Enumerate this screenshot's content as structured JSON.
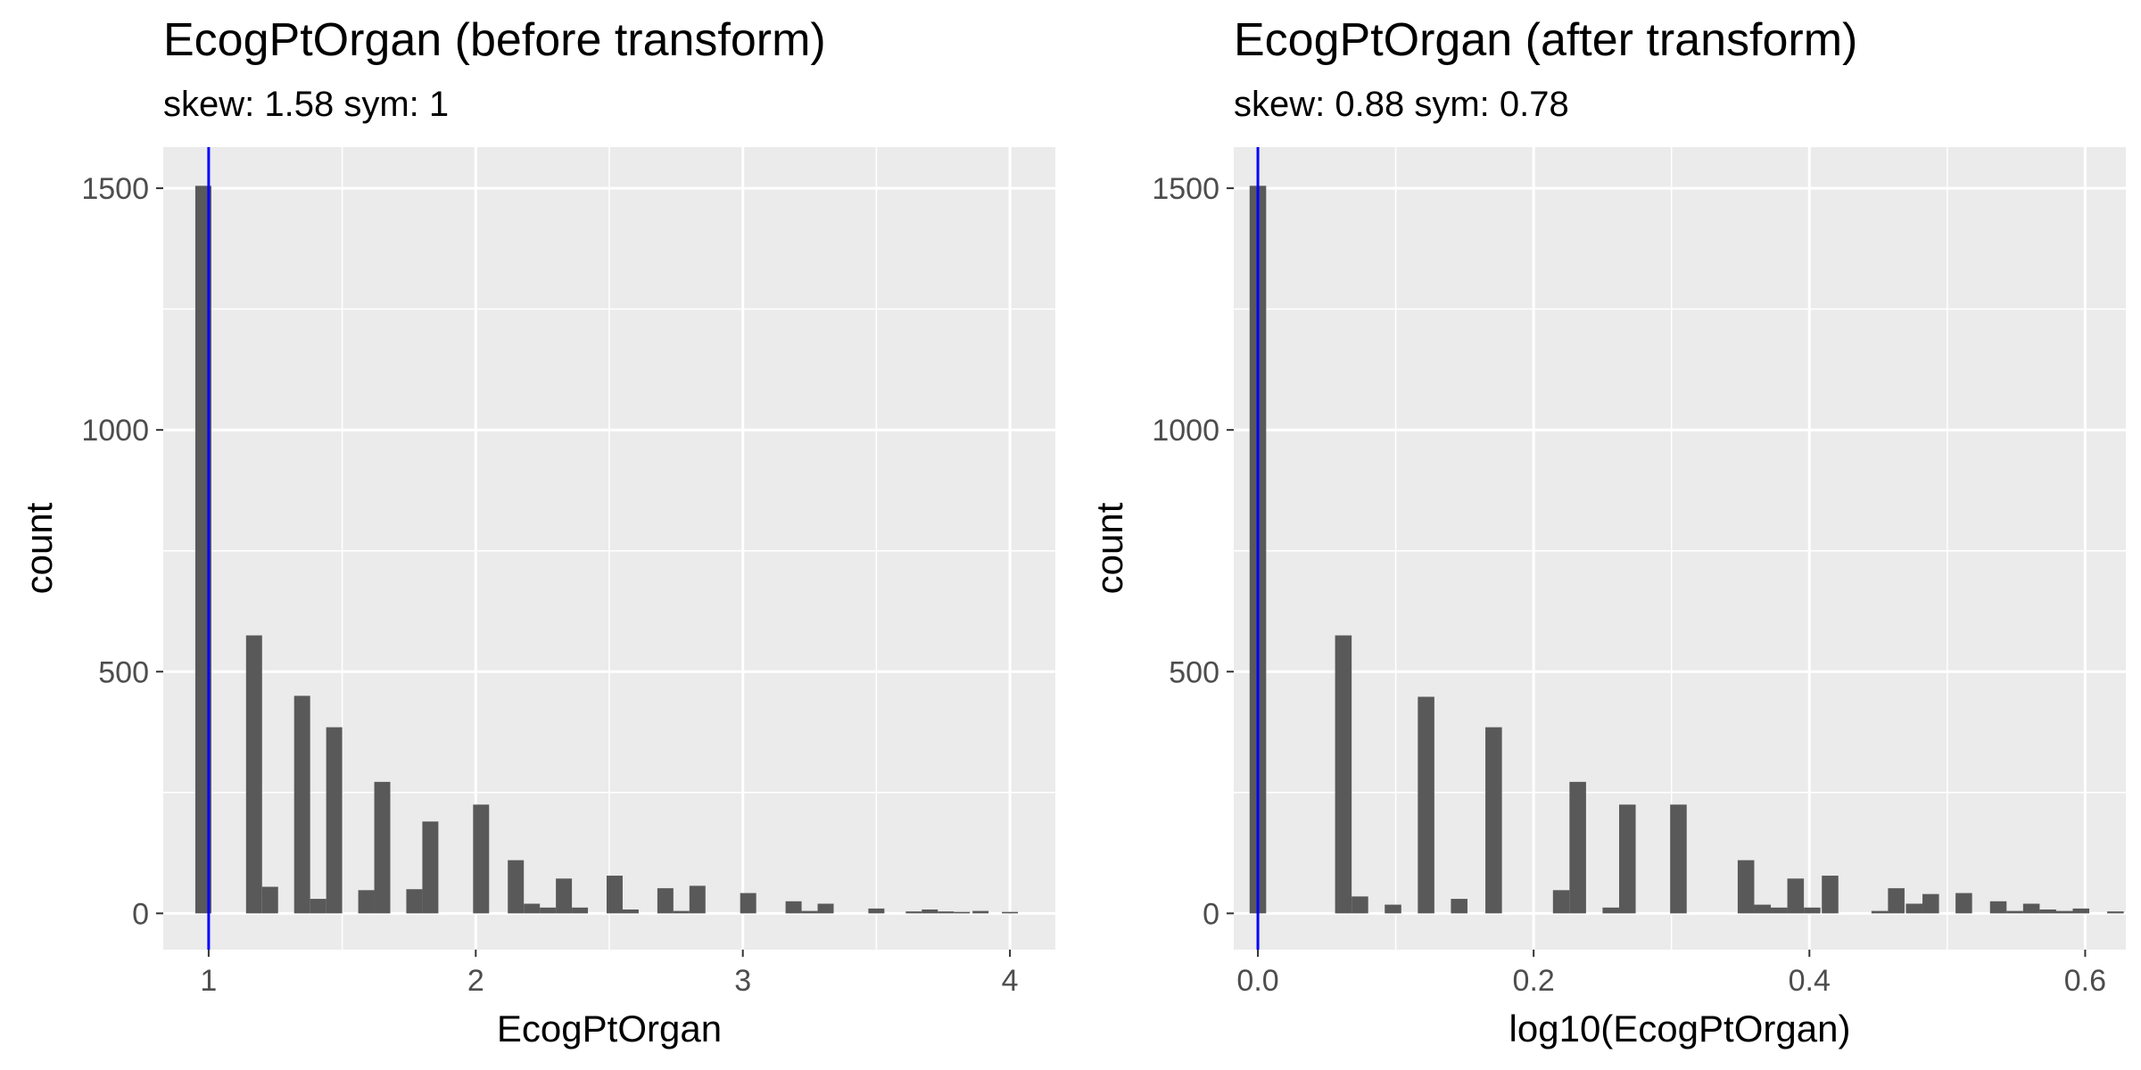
{
  "colors": {
    "panel": "#ebebeb",
    "grid_major": "#ffffff",
    "bar": "#595959",
    "vline": "#0000ff",
    "tick": "#4d4d4d"
  },
  "chart_data": [
    {
      "type": "bar",
      "title": "EcogPtOrgan (before transform)",
      "subtitle": "skew: 1.58 sym: 1",
      "xlabel": "EcogPtOrgan",
      "ylabel": "count",
      "xlim": [
        0.83,
        4.17
      ],
      "ylim": [
        -75,
        1585
      ],
      "xticks": [
        1,
        2,
        3,
        4
      ],
      "xtick_labels": [
        "1",
        "2",
        "3",
        "4"
      ],
      "yticks": [
        0,
        500,
        1000,
        1500
      ],
      "ytick_labels": [
        "0",
        "500",
        "1000",
        "1500"
      ],
      "bin_width": 0.06,
      "vline": 1,
      "bins": [
        {
          "x": 0.98,
          "y": 1505
        },
        {
          "x": 1.17,
          "y": 575
        },
        {
          "x": 1.23,
          "y": 55
        },
        {
          "x": 1.35,
          "y": 450
        },
        {
          "x": 1.41,
          "y": 30
        },
        {
          "x": 1.47,
          "y": 385
        },
        {
          "x": 1.59,
          "y": 48
        },
        {
          "x": 1.65,
          "y": 272
        },
        {
          "x": 1.77,
          "y": 50
        },
        {
          "x": 1.83,
          "y": 190
        },
        {
          "x": 2.02,
          "y": 225
        },
        {
          "x": 2.15,
          "y": 110
        },
        {
          "x": 2.21,
          "y": 20
        },
        {
          "x": 2.27,
          "y": 12
        },
        {
          "x": 2.33,
          "y": 72
        },
        {
          "x": 2.39,
          "y": 12
        },
        {
          "x": 2.52,
          "y": 78
        },
        {
          "x": 2.58,
          "y": 8
        },
        {
          "x": 2.71,
          "y": 52
        },
        {
          "x": 2.77,
          "y": 5
        },
        {
          "x": 2.83,
          "y": 57
        },
        {
          "x": 3.02,
          "y": 42
        },
        {
          "x": 3.19,
          "y": 25
        },
        {
          "x": 3.25,
          "y": 5
        },
        {
          "x": 3.31,
          "y": 20
        },
        {
          "x": 3.5,
          "y": 10
        },
        {
          "x": 3.64,
          "y": 4
        },
        {
          "x": 3.7,
          "y": 8
        },
        {
          "x": 3.76,
          "y": 4
        },
        {
          "x": 3.82,
          "y": 3
        },
        {
          "x": 3.89,
          "y": 5
        },
        {
          "x": 4.0,
          "y": 3
        }
      ]
    },
    {
      "type": "bar",
      "title": "EcogPtOrgan (after transform)",
      "subtitle": "skew: 0.88 sym: 0.78",
      "xlabel": "log10(EcogPtOrgan)",
      "ylabel": "count",
      "xlim": [
        -0.0175,
        0.6295
      ],
      "ylim": [
        -75,
        1585
      ],
      "xticks": [
        0,
        0.2,
        0.4,
        0.6
      ],
      "xtick_labels": [
        "0.0",
        "0.2",
        "0.4",
        "0.6"
      ],
      "yticks": [
        0,
        500,
        1000,
        1500
      ],
      "yticks_labels_note": "",
      "ytick_labels": [
        "0",
        "500",
        "1000",
        "1500"
      ],
      "bin_width": 0.012,
      "vline": 0,
      "bins": [
        {
          "x": 0.0,
          "y": 1505
        },
        {
          "x": 0.062,
          "y": 575
        },
        {
          "x": 0.074,
          "y": 35
        },
        {
          "x": 0.098,
          "y": 18
        },
        {
          "x": 0.122,
          "y": 448
        },
        {
          "x": 0.146,
          "y": 30
        },
        {
          "x": 0.171,
          "y": 385
        },
        {
          "x": 0.22,
          "y": 48
        },
        {
          "x": 0.232,
          "y": 272
        },
        {
          "x": 0.256,
          "y": 12
        },
        {
          "x": 0.268,
          "y": 225
        },
        {
          "x": 0.305,
          "y": 225
        },
        {
          "x": 0.354,
          "y": 110
        },
        {
          "x": 0.366,
          "y": 18
        },
        {
          "x": 0.378,
          "y": 12
        },
        {
          "x": 0.39,
          "y": 72
        },
        {
          "x": 0.402,
          "y": 12
        },
        {
          "x": 0.415,
          "y": 78
        },
        {
          "x": 0.451,
          "y": 5
        },
        {
          "x": 0.463,
          "y": 52
        },
        {
          "x": 0.476,
          "y": 20
        },
        {
          "x": 0.488,
          "y": 40
        },
        {
          "x": 0.512,
          "y": 42
        },
        {
          "x": 0.537,
          "y": 25
        },
        {
          "x": 0.549,
          "y": 5
        },
        {
          "x": 0.561,
          "y": 20
        },
        {
          "x": 0.573,
          "y": 8
        },
        {
          "x": 0.585,
          "y": 5
        },
        {
          "x": 0.597,
          "y": 10
        },
        {
          "x": 0.622,
          "y": 4
        }
      ]
    }
  ]
}
